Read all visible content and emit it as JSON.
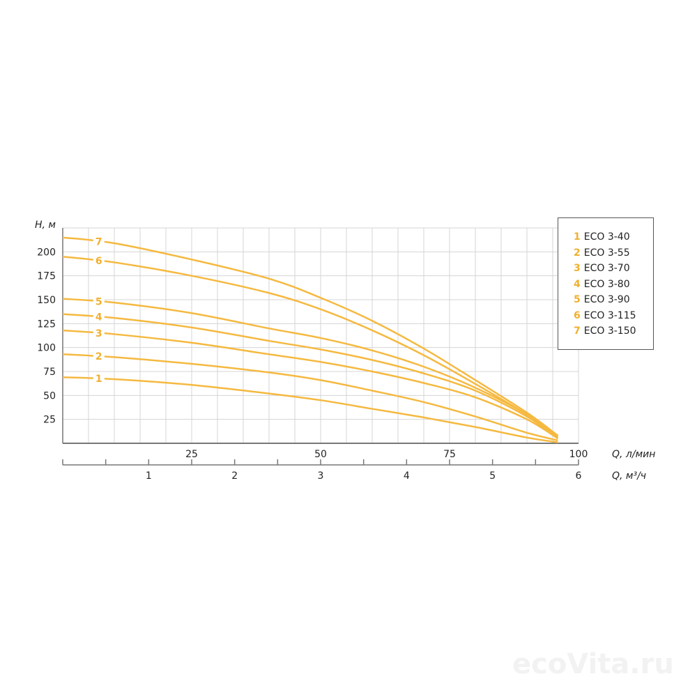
{
  "chart_data": {
    "type": "line",
    "ylabel": "H, м",
    "xlabel": "Q, л/мин",
    "x2label": "Q, м³/ч",
    "xlim": [
      0,
      100
    ],
    "ylim": [
      0,
      225
    ],
    "x2lim": [
      0,
      6
    ],
    "xticks": [
      25,
      50,
      75,
      100
    ],
    "x2ticks": [
      1,
      2,
      3,
      4,
      5,
      6
    ],
    "yticks": [
      25,
      50,
      75,
      100,
      125,
      150,
      175,
      200
    ],
    "grid": true,
    "legend_position": "right",
    "line_color": "#f5b940",
    "series": [
      {
        "id": "1",
        "name": "ECO 3-40",
        "x": [
          0,
          10,
          25,
          40,
          50,
          60,
          70,
          80,
          90,
          96
        ],
        "y": [
          69,
          67,
          61,
          52,
          45,
          36,
          27,
          17,
          6,
          1
        ]
      },
      {
        "id": "2",
        "name": "ECO 3-55",
        "x": [
          0,
          10,
          25,
          40,
          50,
          60,
          70,
          80,
          90,
          96
        ],
        "y": [
          93,
          90,
          83,
          74,
          66,
          55,
          43,
          28,
          11,
          3
        ]
      },
      {
        "id": "3",
        "name": "ECO 3-70",
        "x": [
          0,
          10,
          25,
          40,
          50,
          60,
          70,
          80,
          90,
          96
        ],
        "y": [
          118,
          114,
          105,
          93,
          85,
          75,
          63,
          48,
          25,
          5
        ]
      },
      {
        "id": "4",
        "name": "ECO 3-80",
        "x": [
          0,
          10,
          25,
          40,
          50,
          60,
          70,
          80,
          90,
          96
        ],
        "y": [
          135,
          131,
          121,
          107,
          98,
          87,
          73,
          55,
          28,
          5
        ]
      },
      {
        "id": "5",
        "name": "ECO 3-90",
        "x": [
          0,
          10,
          25,
          40,
          50,
          60,
          70,
          80,
          90,
          96
        ],
        "y": [
          151,
          147,
          136,
          120,
          110,
          97,
          80,
          58,
          30,
          6
        ]
      },
      {
        "id": "6",
        "name": "ECO 3-115",
        "x": [
          0,
          10,
          25,
          40,
          50,
          60,
          70,
          80,
          90,
          96
        ],
        "y": [
          195,
          189,
          175,
          157,
          140,
          118,
          92,
          62,
          30,
          7
        ]
      },
      {
        "id": "7",
        "name": "ECO 3-150",
        "x": [
          0,
          10,
          25,
          40,
          50,
          60,
          70,
          80,
          90,
          96
        ],
        "y": [
          215,
          209,
          192,
          172,
          152,
          128,
          99,
          66,
          32,
          8
        ]
      }
    ]
  },
  "watermark": "ecoVita.ru"
}
